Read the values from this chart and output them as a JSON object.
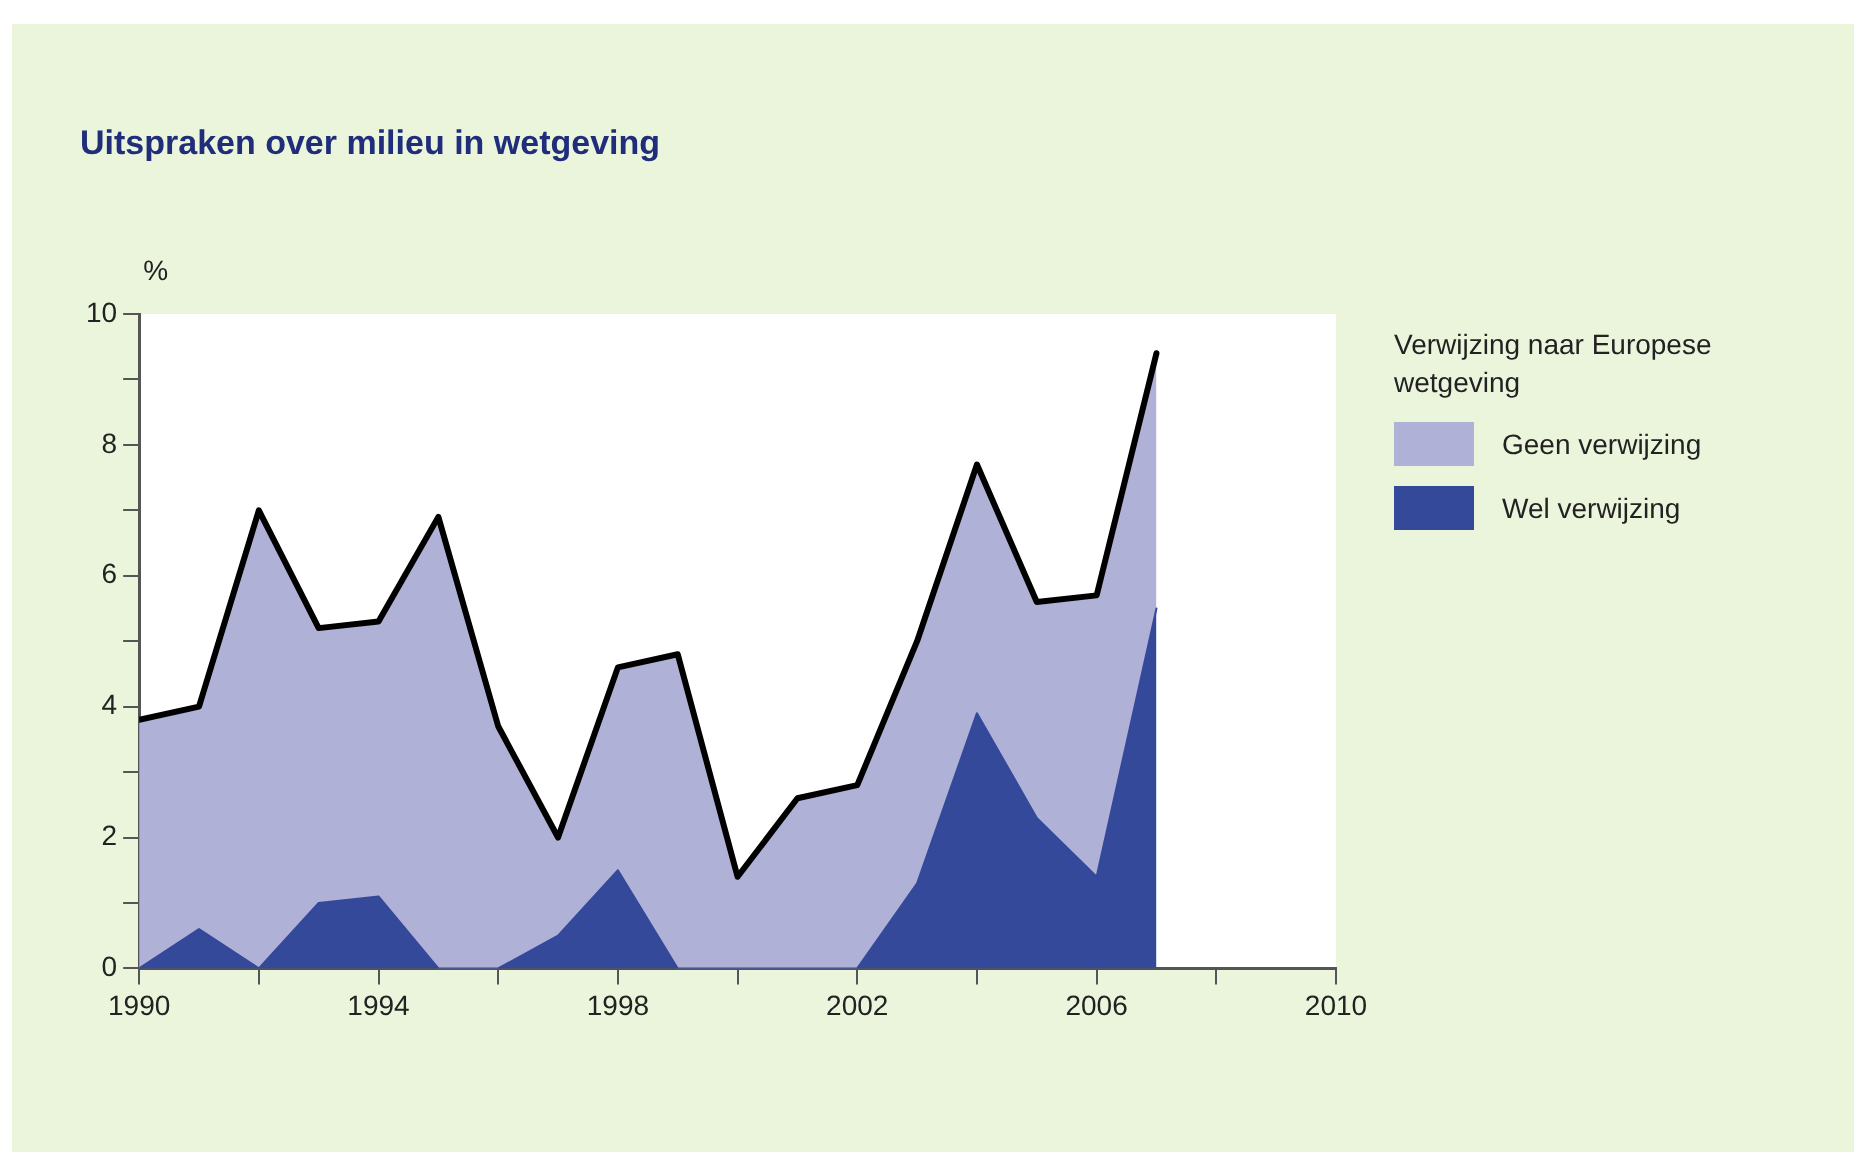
{
  "chart_data": {
    "type": "area",
    "title": "Uitspraken over milieu in wetgeving",
    "ylabel": "%",
    "legend_title": "Verwijzing naar Europese wetgeving",
    "stacked": true,
    "legend": "right",
    "grid": false,
    "x": [
      1990,
      1991,
      1992,
      1993,
      1994,
      1995,
      1996,
      1997,
      1998,
      1999,
      2000,
      2001,
      2002,
      2003,
      2004,
      2005,
      2006,
      2007
    ],
    "xlim": [
      1990,
      2010
    ],
    "xticks": [
      1990,
      {
        "value": 1992,
        "label": null
      },
      1994,
      {
        "value": 1996,
        "label": null
      },
      1998,
      {
        "value": 2000,
        "label": null
      },
      2002,
      {
        "value": 2004,
        "label": null
      },
      2006,
      {
        "value": 2008,
        "label": null
      },
      2010
    ],
    "ylim": [
      0,
      10
    ],
    "yticks": [
      0,
      {
        "value": 1,
        "label": null
      },
      2,
      {
        "value": 3,
        "label": null
      },
      4,
      {
        "value": 5,
        "label": null
      },
      6,
      {
        "value": 7,
        "label": null
      },
      8,
      {
        "value": 9,
        "label": null
      },
      10
    ],
    "series": [
      {
        "name": "Wel verwijzing",
        "color": "#34499a",
        "values": [
          0,
          0.6,
          0,
          1.0,
          1.1,
          0,
          0,
          0.5,
          1.5,
          0,
          0,
          0,
          0,
          1.3,
          3.9,
          2.3,
          1.4,
          5.5
        ]
      },
      {
        "name": "Geen verwijzing",
        "color": "#afb1d6",
        "values": [
          3.8,
          3.4,
          7.0,
          4.2,
          4.2,
          6.9,
          3.7,
          1.5,
          3.1,
          4.8,
          1.4,
          2.6,
          2.8,
          3.7,
          3.8,
          3.3,
          4.3,
          3.9
        ]
      }
    ]
  }
}
